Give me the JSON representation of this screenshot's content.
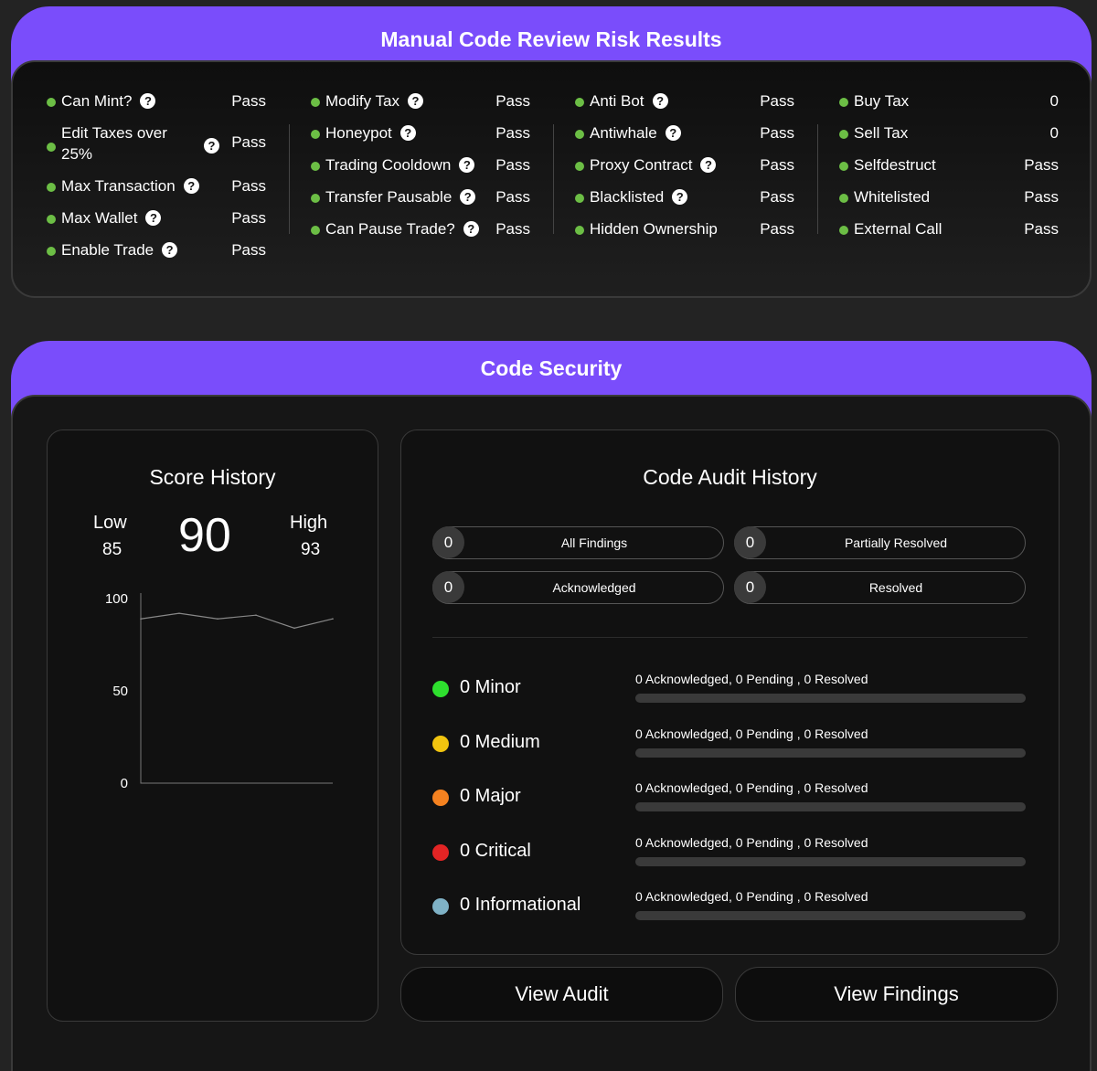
{
  "risk": {
    "title": "Manual Code Review Risk Results",
    "columns": [
      [
        {
          "label": "Can Mint?",
          "value": "Pass",
          "help": true
        },
        {
          "label": "Edit Taxes over 25%",
          "value": "Pass",
          "help": true
        },
        {
          "label": "Max Transaction",
          "value": "Pass",
          "help": true
        },
        {
          "label": "Max Wallet",
          "value": "Pass",
          "help": true
        },
        {
          "label": "Enable Trade",
          "value": "Pass",
          "help": true
        }
      ],
      [
        {
          "label": "Modify Tax",
          "value": "Pass",
          "help": true
        },
        {
          "label": "Honeypot",
          "value": "Pass",
          "help": true
        },
        {
          "label": "Trading Cooldown",
          "value": "Pass",
          "help": true
        },
        {
          "label": "Transfer Pausable",
          "value": "Pass",
          "help": true
        },
        {
          "label": "Can Pause Trade?",
          "value": "Pass",
          "help": true
        }
      ],
      [
        {
          "label": "Anti Bot",
          "value": "Pass",
          "help": true
        },
        {
          "label": "Antiwhale",
          "value": "Pass",
          "help": true
        },
        {
          "label": "Proxy Contract",
          "value": "Pass",
          "help": true
        },
        {
          "label": "Blacklisted",
          "value": "Pass",
          "help": true
        },
        {
          "label": "Hidden Ownership",
          "value": "Pass",
          "help": false
        }
      ],
      [
        {
          "label": "Buy Tax",
          "value": "0",
          "help": false
        },
        {
          "label": "Sell Tax",
          "value": "0",
          "help": false
        },
        {
          "label": "Selfdestruct",
          "value": "Pass",
          "help": false
        },
        {
          "label": "Whitelisted",
          "value": "Pass",
          "help": false
        },
        {
          "label": "External Call",
          "value": "Pass",
          "help": false
        }
      ]
    ],
    "help_glyph": "?"
  },
  "security": {
    "title": "Code Security",
    "score": {
      "title": "Score History",
      "low_label": "Low",
      "low": "85",
      "current": "90",
      "high_label": "High",
      "high": "93"
    },
    "chart_data": {
      "type": "line",
      "title": "",
      "ylim": [
        0,
        100
      ],
      "yticks": [
        "100",
        "50",
        "0"
      ],
      "grid": false,
      "series": [
        {
          "values": [
            89,
            92,
            89,
            91,
            84,
            89
          ]
        }
      ]
    },
    "audit": {
      "title": "Code Audit History",
      "pills": [
        {
          "count": "0",
          "label": "All Findings"
        },
        {
          "count": "0",
          "label": "Partially Resolved"
        },
        {
          "count": "0",
          "label": "Acknowledged"
        },
        {
          "count": "0",
          "label": "Resolved"
        }
      ],
      "severities": [
        {
          "label": "0 Minor",
          "color": "#2ee02e",
          "summary": "0 Acknowledged, 0 Pending , 0 Resolved",
          "progress": 0
        },
        {
          "label": "0 Medium",
          "color": "#f1c40f",
          "summary": "0 Acknowledged, 0 Pending , 0 Resolved",
          "progress": 0
        },
        {
          "label": "0 Major",
          "color": "#f58220",
          "summary": "0 Acknowledged, 0 Pending , 0 Resolved",
          "progress": 0
        },
        {
          "label": "0 Critical",
          "color": "#e32424",
          "summary": "0 Acknowledged, 0 Pending , 0 Resolved",
          "progress": 0
        },
        {
          "label": "0 Informational",
          "color": "#7fb2c6",
          "summary": "0 Acknowledged, 0 Pending , 0 Resolved",
          "progress": 0
        }
      ]
    },
    "buttons": {
      "view_audit": "View Audit",
      "view_findings": "View Findings"
    }
  },
  "colors": {
    "accent": "#7a4dfb",
    "pass_dot": "#6cbe45",
    "panel_bg": "#131313",
    "page_bg": "#232323"
  }
}
